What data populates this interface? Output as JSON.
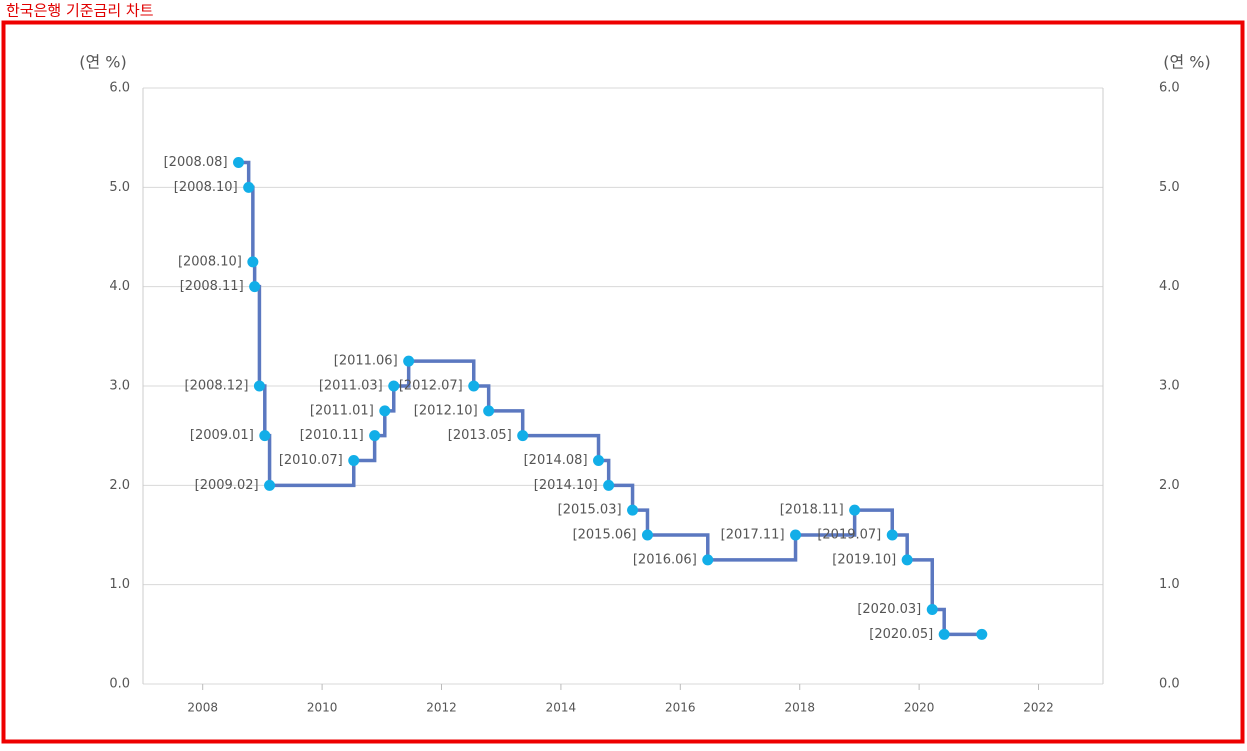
{
  "page_title": "한국은행 기준금리 차트",
  "chart_data": {
    "type": "line",
    "step": "after",
    "y_label": "(연 %)",
    "y2_label": "(연 %)",
    "x": [
      2008.6,
      2008.77,
      2008.84,
      2008.87,
      2008.95,
      2009.04,
      2009.12,
      2010.53,
      2010.88,
      2011.05,
      2011.2,
      2011.45,
      2012.54,
      2012.79,
      2013.36,
      2014.63,
      2014.8,
      2015.2,
      2015.45,
      2016.46,
      2017.93,
      2018.92,
      2019.55,
      2019.8,
      2020.22,
      2020.42,
      2021.05
    ],
    "values": [
      5.25,
      5.0,
      4.25,
      4.0,
      3.0,
      2.5,
      2.0,
      2.25,
      2.5,
      2.75,
      3.0,
      3.25,
      3.0,
      2.75,
      2.5,
      2.25,
      2.0,
      1.75,
      1.5,
      1.25,
      1.5,
      1.75,
      1.5,
      1.25,
      0.75,
      0.5,
      0.5
    ],
    "point_labels": [
      "[2008.08]",
      "[2008.10]",
      "[2008.10]",
      "[2008.11]",
      "[2008.12]",
      "[2009.01]",
      "[2009.02]",
      "[2010.07]",
      "[2010.11]",
      "[2011.01]",
      "[2011.03]",
      "[2011.06]",
      "[2012.07]",
      "[2012.10]",
      "[2013.05]",
      "[2014.08]",
      "[2014.10]",
      "[2015.03]",
      "[2015.06]",
      "[2016.06]",
      "[2017.11]",
      "[2018.11]",
      "[2019.07]",
      "[2019.10]",
      "[2020.03]",
      "[2020.05]",
      null
    ],
    "line_color": "#5b78c0",
    "marker_color": "#12aee8",
    "xlim": [
      2007,
      2023.08
    ],
    "xticks": [
      2008,
      2010,
      2012,
      2014,
      2016,
      2018,
      2020,
      2022
    ],
    "ylim": [
      0,
      6
    ],
    "yticks": [
      {
        "value": 0,
        "label": "0.0"
      },
      {
        "value": 1,
        "label": "1.0"
      },
      {
        "value": 2,
        "label": "2.0"
      },
      {
        "value": 3,
        "label": "3.0"
      },
      {
        "value": 4,
        "label": "4.0"
      },
      {
        "value": 5,
        "label": "5.0"
      },
      {
        "value": 6,
        "label": "6.0"
      }
    ],
    "y2lim": [
      0,
      6
    ],
    "y2ticks": [
      {
        "value": 0,
        "label": "0.0"
      },
      {
        "value": 1,
        "label": "1.0"
      },
      {
        "value": 2,
        "label": "2.0"
      },
      {
        "value": 3,
        "label": "3.0"
      },
      {
        "value": 4,
        "label": "4.0"
      },
      {
        "value": 5,
        "label": "5.0"
      },
      {
        "value": 6,
        "label": "6.0"
      }
    ],
    "grid": true
  }
}
